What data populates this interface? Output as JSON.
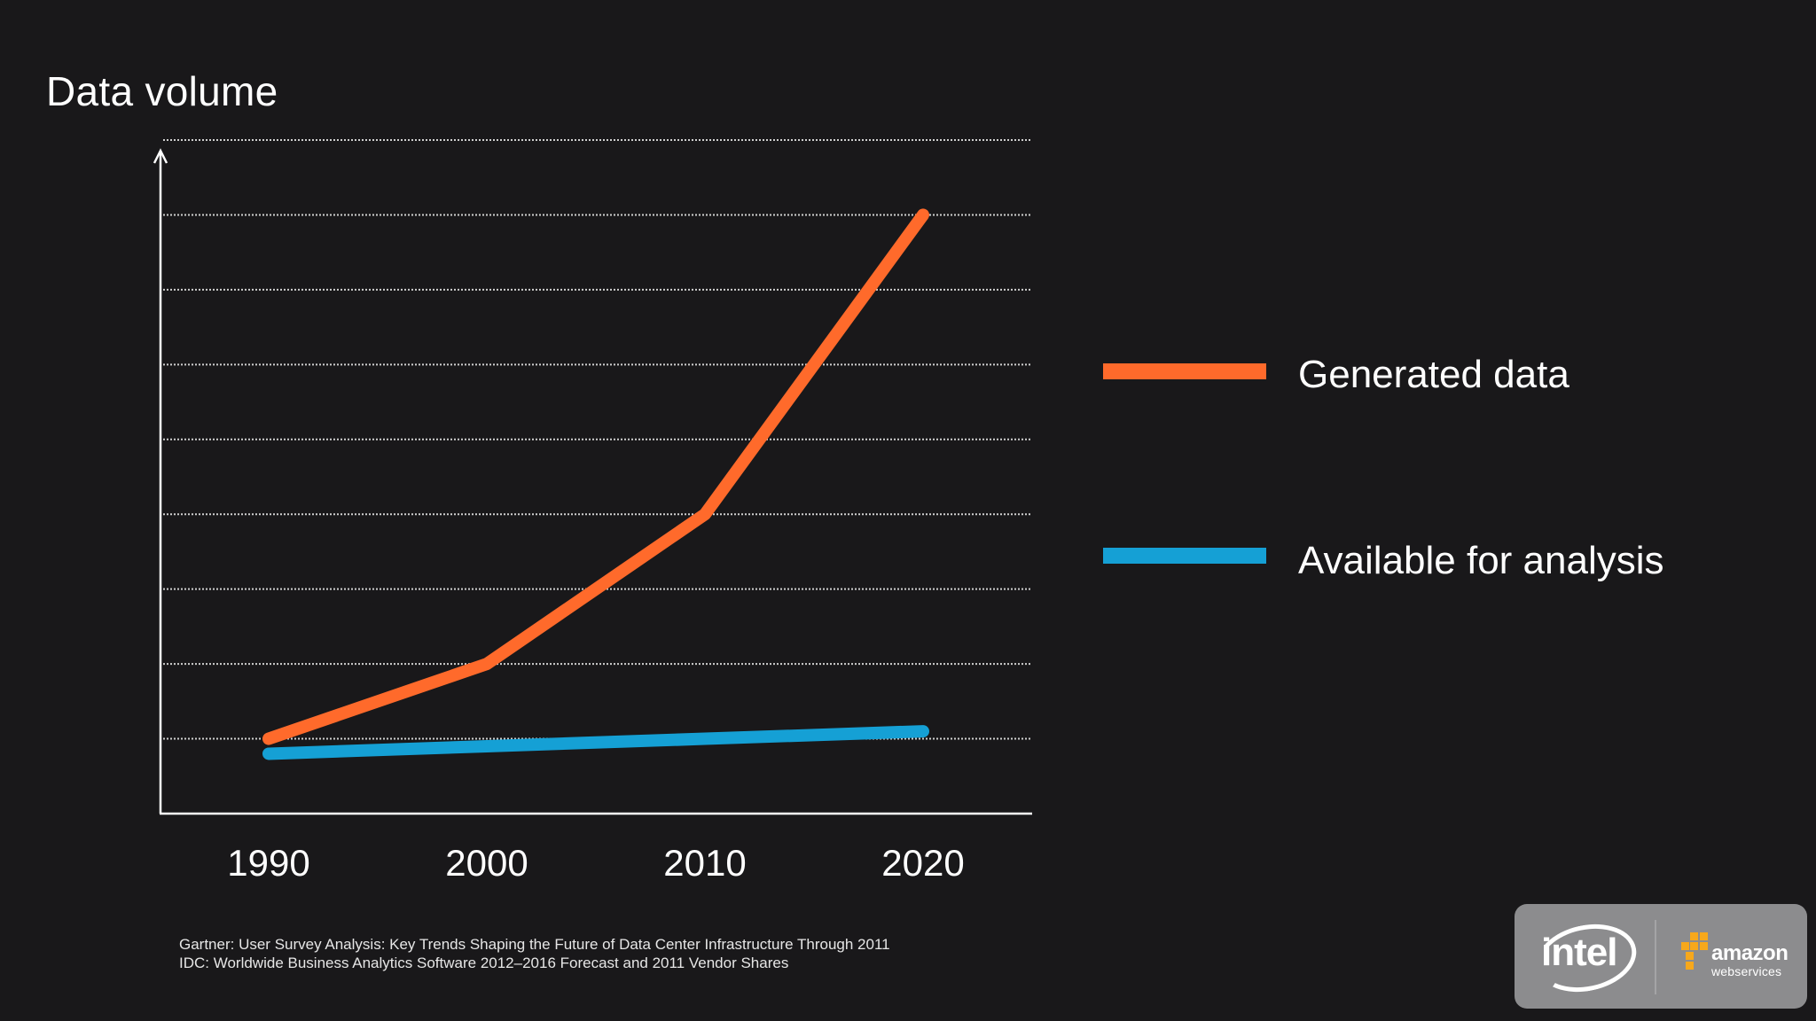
{
  "chart_data": {
    "type": "line",
    "title": "Data volume",
    "categories": [
      "1990",
      "2000",
      "2010",
      "2020"
    ],
    "ylim": [
      0,
      9
    ],
    "grid": true,
    "legend_position": "right",
    "series": [
      {
        "name": "Generated data",
        "values": [
          1.0,
          2.0,
          4.0,
          8.0
        ],
        "color": "#ff6a2b"
      },
      {
        "name": "Available for analysis",
        "values": [
          0.8,
          0.9,
          1.0,
          1.1
        ],
        "color": "#15a0d5"
      }
    ]
  },
  "sources": [
    "Gartner: User Survey Analysis: Key Trends Shaping the Future of Data Center Infrastructure Through 2011",
    "IDC: Worldwide Business Analytics Software 2012–2016 Forecast and 2011 Vendor Shares"
  ],
  "logos": {
    "intel": "intel",
    "aws_name": "amazon",
    "aws_sub": "webservices",
    "box_color": "#8c8c8e",
    "aws_cube_color": "#f7a81b"
  }
}
